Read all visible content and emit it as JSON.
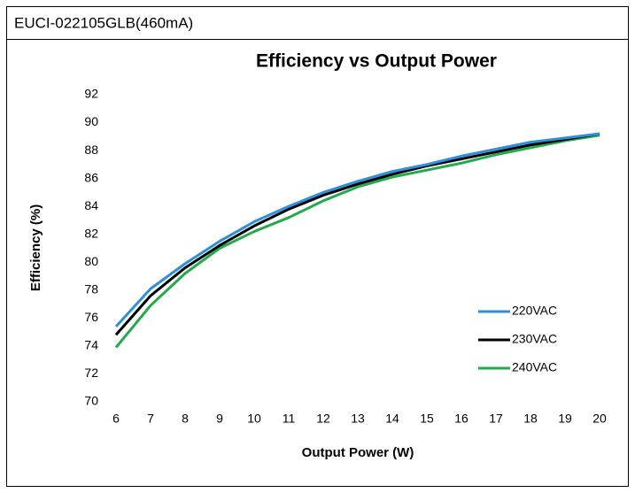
{
  "header": {
    "title": "EUCI-022105GLB(460mA)"
  },
  "chart_data": {
    "type": "line",
    "title": "Efficiency vs Output Power",
    "x_label": "Output Power (W)",
    "y_label": "Efficiency (%)",
    "x": [
      6,
      7,
      8,
      9,
      10,
      11,
      12,
      13,
      14,
      15,
      16,
      17,
      18,
      19,
      20
    ],
    "series": [
      {
        "name": "220VAC",
        "color": "#2f8fda",
        "values": [
          75.4,
          78.1,
          79.9,
          81.5,
          82.9,
          84.0,
          85.0,
          85.8,
          86.5,
          87.0,
          87.6,
          88.1,
          88.6,
          88.9,
          89.2
        ]
      },
      {
        "name": "230VAC",
        "color": "#000000",
        "values": [
          74.8,
          77.6,
          79.6,
          81.2,
          82.6,
          83.8,
          84.8,
          85.6,
          86.3,
          86.9,
          87.4,
          87.9,
          88.4,
          88.8,
          89.2
        ]
      },
      {
        "name": "240VAC",
        "color": "#22aa4c",
        "values": [
          73.9,
          76.9,
          79.2,
          81.0,
          82.2,
          83.2,
          84.4,
          85.4,
          86.1,
          86.6,
          87.1,
          87.7,
          88.2,
          88.7,
          89.1
        ]
      }
    ],
    "xlim": [
      6,
      20
    ],
    "xticks": [
      6,
      7,
      8,
      9,
      10,
      11,
      12,
      13,
      14,
      15,
      16,
      17,
      18,
      19,
      20
    ],
    "ylim": [
      70,
      92
    ],
    "yticks": [
      70,
      72,
      74,
      76,
      78,
      80,
      82,
      84,
      86,
      88,
      90,
      92
    ],
    "legend": "lower right"
  }
}
